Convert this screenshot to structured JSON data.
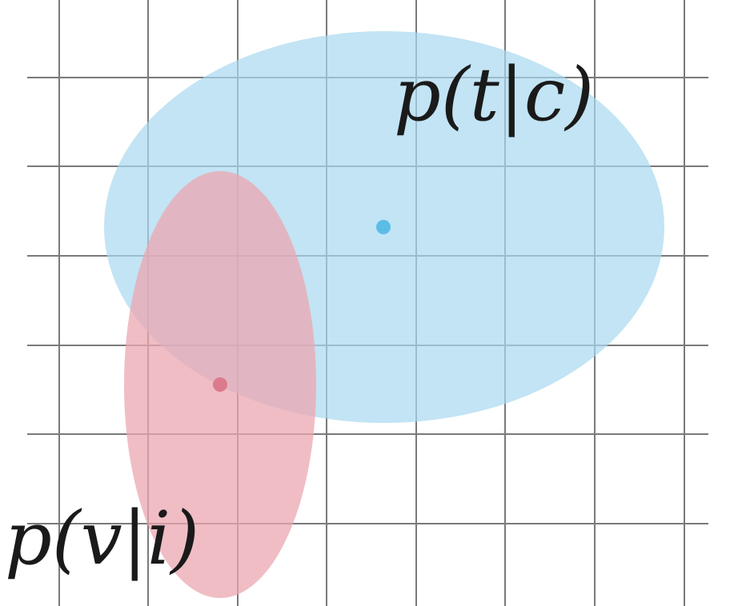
{
  "colors": {
    "background": "#ffffff",
    "grid": "#7a7a7a",
    "text_distribution_fill": "#a8d8f0",
    "text_distribution_center": "#5bbde6",
    "image_distribution_fill": "#eba7b2",
    "image_distribution_center": "#dc7a8d",
    "label": "#1a1a1a"
  },
  "labels": {
    "text_distribution": "p(t|c)",
    "image_distribution": "p(v|i)"
  }
}
